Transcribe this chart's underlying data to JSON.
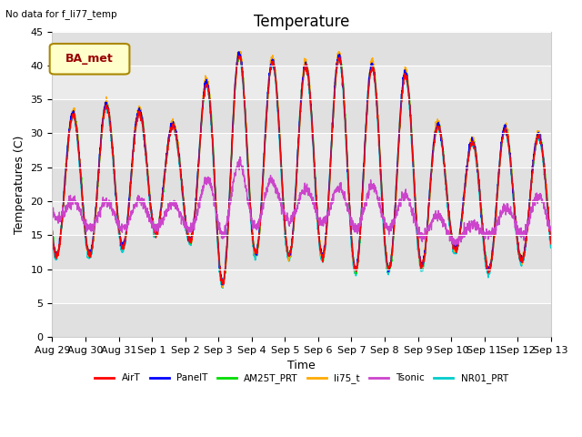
{
  "title": "Temperature",
  "subtitle": "No data for f_li77_temp",
  "xlabel": "Time",
  "ylabel": "Temperatures (C)",
  "ylim": [
    0,
    45
  ],
  "yticks": [
    0,
    5,
    10,
    15,
    20,
    25,
    30,
    35,
    40,
    45
  ],
  "x_labels": [
    "Aug 29",
    "Aug 30",
    "Aug 31",
    "Sep 1",
    "Sep 2",
    "Sep 3",
    "Sep 4",
    "Sep 5",
    "Sep 6",
    "Sep 7",
    "Sep 8",
    "Sep 9",
    "Sep 10",
    "Sep 11",
    "Sep 12",
    "Sep 13"
  ],
  "series_order": [
    "NR01_PRT",
    "AM25T_PRT",
    "li75_t",
    "PanelT",
    "AirT",
    "Tsonic"
  ],
  "series": {
    "AirT": {
      "color": "#ff0000",
      "lw": 1.0
    },
    "PanelT": {
      "color": "#0000ff",
      "lw": 1.0
    },
    "AM25T_PRT": {
      "color": "#00dd00",
      "lw": 1.0
    },
    "li75_t": {
      "color": "#ffaa00",
      "lw": 1.0
    },
    "Tsonic": {
      "color": "#cc44cc",
      "lw": 1.0
    },
    "NR01_PRT": {
      "color": "#00cccc",
      "lw": 1.2
    }
  },
  "legend_entries": [
    "AirT",
    "PanelT",
    "AM25T_PRT",
    "li75_t",
    "Tsonic",
    "NR01_PRT"
  ],
  "legend_label": "BA_met",
  "legend_fgcolor": "#990000",
  "legend_bgcolor": "#ffffcc",
  "legend_edgecolor": "#aa8800",
  "band_colors": [
    "#e0e0e0",
    "#ebebeb"
  ],
  "title_fontsize": 12,
  "label_fontsize": 9,
  "tick_fontsize": 8
}
